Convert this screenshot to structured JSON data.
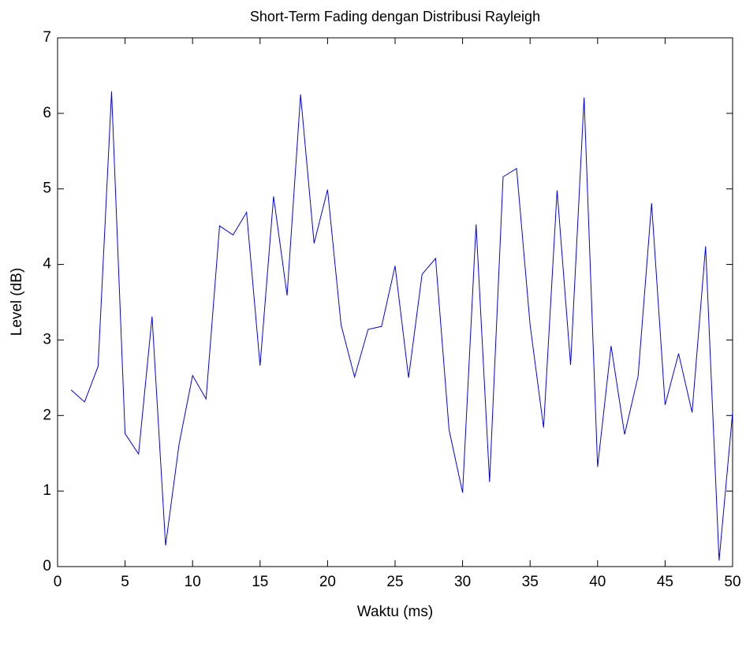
{
  "chart_data": {
    "type": "line",
    "title": "Short-Term Fading dengan Distribusi Rayleigh",
    "x_label": "Waktu (ms)",
    "y_label": "Level (dB)",
    "x": [
      1,
      2,
      3,
      4,
      5,
      6,
      7,
      8,
      9,
      10,
      11,
      12,
      13,
      14,
      15,
      16,
      17,
      18,
      19,
      20,
      21,
      22,
      23,
      24,
      25,
      26,
      27,
      28,
      29,
      30,
      31,
      32,
      33,
      34,
      35,
      36,
      37,
      38,
      39,
      40,
      41,
      42,
      43,
      44,
      45,
      46,
      47,
      48,
      49,
      50
    ],
    "series": [
      {
        "color": "#0000ff",
        "values": [
          2.34,
          2.18,
          2.65,
          6.29,
          1.76,
          1.49,
          3.31,
          0.28,
          1.62,
          2.53,
          2.22,
          4.51,
          4.39,
          4.69,
          2.66,
          4.9,
          3.59,
          6.25,
          4.28,
          4.99,
          3.2,
          2.51,
          3.14,
          3.18,
          3.98,
          2.5,
          3.87,
          4.08,
          1.81,
          0.98,
          4.53,
          1.12,
          5.16,
          5.27,
          3.2,
          1.84,
          4.98,
          2.67,
          6.21,
          1.32,
          2.92,
          1.75,
          2.52,
          4.81,
          2.14,
          2.82,
          2.04,
          4.24,
          0.08,
          2.04
        ]
      }
    ],
    "xlim": [
      0,
      50
    ],
    "xticks": [
      0,
      5,
      10,
      15,
      20,
      25,
      30,
      35,
      40,
      45,
      50
    ],
    "ylim": [
      0,
      7
    ],
    "yticks": [
      0,
      1,
      2,
      3,
      4,
      5,
      6,
      7
    ]
  }
}
